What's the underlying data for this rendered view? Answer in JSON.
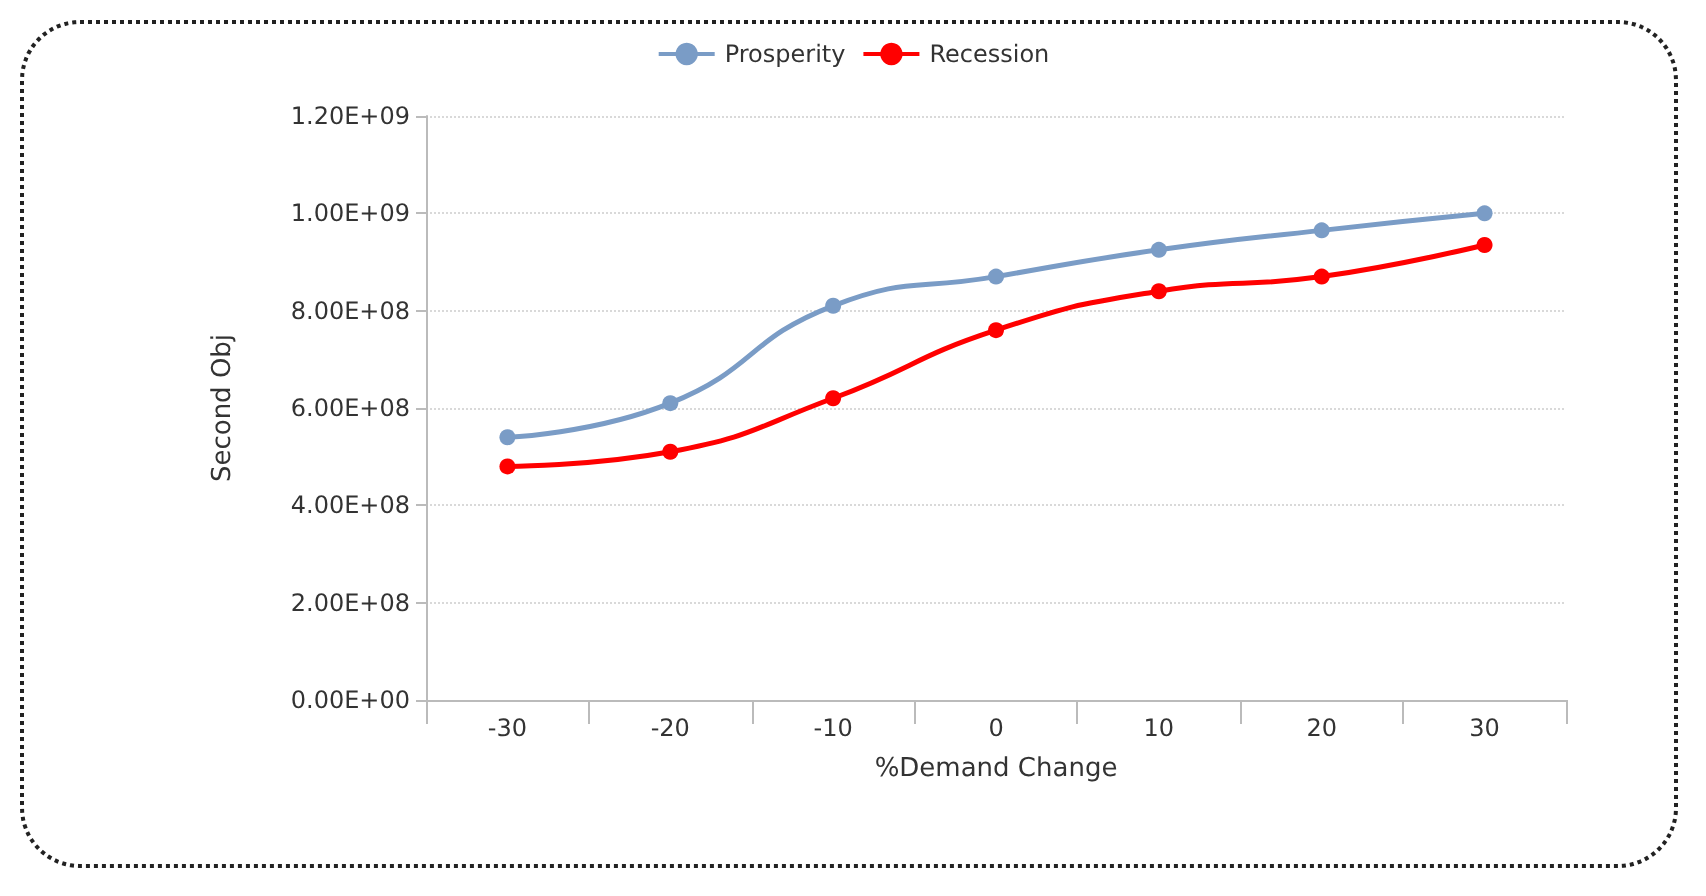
{
  "chart_data": {
    "type": "line",
    "xlabel": "%Demand Change",
    "ylabel": "Second Obj",
    "categories": [
      "-30",
      "-20",
      "-10",
      "0",
      "10",
      "20",
      "30"
    ],
    "series": [
      {
        "name": "Prosperity",
        "color": "#7a9cc6",
        "values": [
          540000000,
          610000000,
          810000000,
          870000000,
          925000000,
          965000000,
          1000000000
        ]
      },
      {
        "name": "Recession",
        "color": "#ff0000",
        "values": [
          480000000,
          510000000,
          620000000,
          760000000,
          840000000,
          870000000,
          935000000
        ]
      }
    ],
    "ylim": [
      0,
      1200000000
    ],
    "yticks": [
      {
        "value": 0,
        "label": "0.00E+00"
      },
      {
        "value": 200000000,
        "label": "2.00E+08"
      },
      {
        "value": 400000000,
        "label": "4.00E+08"
      },
      {
        "value": 600000000,
        "label": "6.00E+08"
      },
      {
        "value": 800000000,
        "label": "8.00E+08"
      },
      {
        "value": 1000000000,
        "label": "1.00E+09"
      },
      {
        "value": 1200000000,
        "label": "1.20E+09"
      }
    ],
    "grid": "y",
    "legend": "top",
    "marker": "circle",
    "line_style": "solid"
  }
}
